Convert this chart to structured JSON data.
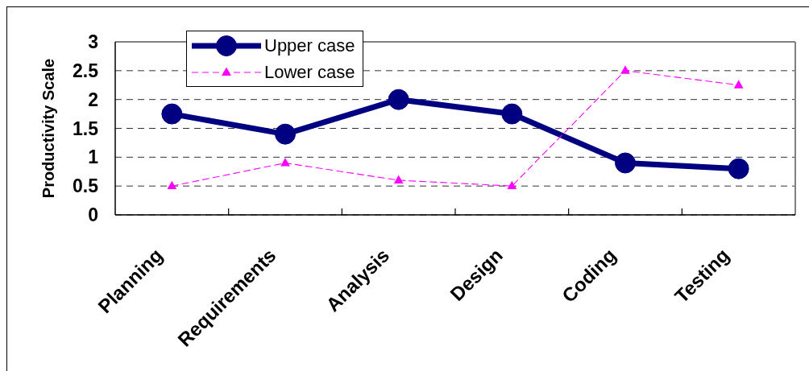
{
  "chart_data": {
    "type": "line",
    "ylabel": "Productivity Scale",
    "categories": [
      "Planning",
      "Requirements",
      "Analysis",
      "Design",
      "Coding",
      "Testing"
    ],
    "series": [
      {
        "name": "Upper case",
        "color": "#000080",
        "values": [
          1.75,
          1.4,
          2,
          1.75,
          0.9,
          0.8
        ],
        "marker": "circle",
        "line_style": "solid"
      },
      {
        "name": "Lower case",
        "color": "#ff00ff",
        "values": [
          0.5,
          0.9,
          0.6,
          0.5,
          2.5,
          2.25
        ],
        "marker": "triangle",
        "line_style": "dashed"
      }
    ],
    "ylim": [
      0,
      3
    ],
    "yticks": [
      0,
      0.5,
      1,
      1.5,
      2,
      2.5,
      3
    ],
    "grid": "y",
    "legend": "top left"
  }
}
